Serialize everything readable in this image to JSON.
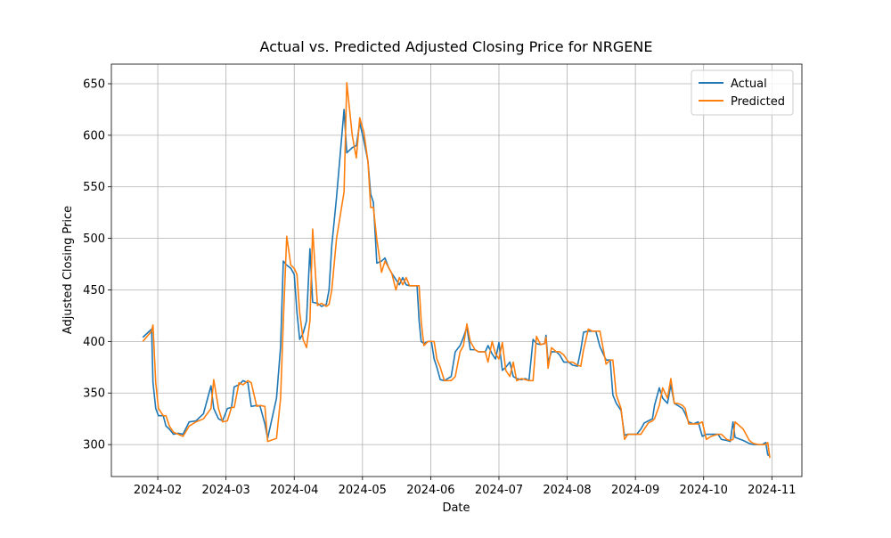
{
  "chart_data": {
    "type": "line",
    "title": "Actual vs. Predicted Adjusted Closing Price for NRGENE",
    "xlabel": "Date",
    "ylabel": "Adjusted Closing Price",
    "x": [
      1.78,
      1.91,
      1.93,
      1.97,
      2.01,
      2.08,
      2.12,
      2.17,
      2.23,
      2.3,
      2.37,
      2.46,
      2.56,
      2.67,
      2.78,
      2.82,
      2.89,
      2.95,
      3.02,
      3.08,
      3.12,
      3.19,
      3.25,
      3.32,
      3.37,
      3.45,
      3.5,
      3.57,
      3.61,
      3.74,
      3.8,
      3.84,
      3.89,
      3.95,
      4.0,
      4.04,
      4.08,
      4.13,
      4.18,
      4.23,
      4.27,
      4.34,
      4.4,
      4.47,
      4.51,
      4.55,
      4.62,
      4.73,
      4.77,
      4.85,
      4.91,
      4.96,
      5.02,
      5.08,
      5.12,
      5.16,
      5.21,
      5.28,
      5.33,
      5.38,
      5.43,
      5.49,
      5.54,
      5.59,
      5.64,
      5.69,
      5.8,
      5.83,
      5.86,
      5.9,
      5.96,
      6.01,
      6.05,
      6.09,
      6.14,
      6.2,
      6.3,
      6.36,
      6.43,
      6.48,
      6.53,
      6.58,
      6.65,
      6.7,
      6.8,
      6.84,
      6.9,
      6.95,
      7.0,
      7.05,
      7.1,
      7.16,
      7.21,
      7.26,
      7.33,
      7.39,
      7.44,
      7.5,
      7.55,
      7.61,
      7.67,
      7.69,
      7.72,
      7.77,
      7.84,
      7.89,
      7.95,
      8.02,
      8.08,
      8.15,
      8.2,
      8.24,
      8.31,
      8.37,
      8.42,
      8.48,
      8.57,
      8.63,
      8.67,
      8.72,
      8.79,
      8.84,
      8.89,
      8.96,
      9.02,
      9.08,
      9.13,
      9.19,
      9.25,
      9.28,
      9.35,
      9.4,
      9.47,
      9.52,
      9.57,
      9.62,
      9.69,
      9.73,
      9.78,
      9.85,
      9.92,
      9.98,
      10.04,
      10.11,
      10.21,
      10.26,
      10.34,
      10.39,
      10.43,
      10.46,
      10.58,
      10.67,
      10.73,
      10.81,
      10.86,
      10.91,
      10.94,
      10.97
    ],
    "series": [
      {
        "name": "Actual",
        "color": "#1f77b4",
        "values": [
          404,
          412,
          360,
          335,
          328,
          328,
          318,
          315,
          310,
          311,
          310,
          322,
          323,
          330,
          357,
          335,
          325,
          323,
          335,
          336,
          356,
          358,
          362,
          360,
          337,
          338,
          337,
          320,
          306,
          345,
          395,
          478,
          474,
          471,
          465,
          428,
          402,
          408,
          420,
          490,
          438,
          437,
          434,
          436,
          450,
          493,
          540,
          625,
          583,
          588,
          590,
          612,
          595,
          575,
          543,
          535,
          476,
          478,
          481,
          472,
          466,
          460,
          455,
          462,
          455,
          454,
          454,
          420,
          400,
          398,
          400,
          400,
          383,
          375,
          363,
          362,
          366,
          390,
          396,
          404,
          414,
          392,
          392,
          390,
          390,
          396,
          388,
          383,
          399,
          372,
          375,
          380,
          366,
          364,
          363,
          364,
          362,
          402,
          398,
          397,
          398,
          406,
          380,
          390,
          390,
          387,
          380,
          380,
          377,
          376,
          392,
          409,
          410,
          410,
          410,
          395,
          382,
          382,
          348,
          340,
          333,
          309,
          310,
          310,
          310,
          315,
          321,
          323,
          325,
          338,
          355,
          345,
          340,
          358,
          340,
          338,
          335,
          330,
          322,
          320,
          322,
          308,
          310,
          310,
          310,
          305,
          304,
          303,
          322,
          307,
          304,
          301,
          300,
          300,
          300,
          302,
          290,
          289
        ]
      },
      {
        "name": "Predicted",
        "color": "#ff7f0e",
        "values": [
          400,
          410,
          416,
          360,
          335,
          328,
          328,
          318,
          312,
          310,
          308,
          318,
          322,
          325,
          335,
          363,
          335,
          322,
          323,
          336,
          336,
          360,
          358,
          362,
          360,
          337,
          338,
          337,
          303,
          306,
          345,
          420,
          502,
          474,
          471,
          465,
          428,
          402,
          394,
          420,
          509,
          435,
          437,
          434,
          436,
          450,
          500,
          545,
          651,
          600,
          578,
          617,
          603,
          575,
          530,
          530,
          499,
          467,
          478,
          472,
          466,
          450,
          462,
          455,
          462,
          454,
          454,
          454,
          420,
          396,
          400,
          400,
          400,
          383,
          375,
          362,
          362,
          366,
          390,
          396,
          417,
          400,
          392,
          390,
          390,
          380,
          400,
          388,
          383,
          399,
          372,
          366,
          380,
          362,
          364,
          363,
          362,
          362,
          405,
          397,
          398,
          404,
          374,
          394,
          390,
          390,
          387,
          380,
          380,
          377,
          376,
          392,
          412,
          410,
          410,
          410,
          378,
          382,
          382,
          348,
          335,
          305,
          310,
          310,
          310,
          310,
          315,
          321,
          323,
          325,
          338,
          355,
          345,
          364,
          340,
          340,
          338,
          335,
          320,
          320,
          320,
          322,
          305,
          308,
          310,
          310,
          305,
          304,
          305,
          322,
          315,
          304,
          301,
          300,
          300,
          300,
          302,
          287
        ]
      }
    ],
    "xlim": [
      1.32,
      11.44
    ],
    "ylim": [
      269,
      669
    ],
    "xticks": [
      {
        "value": 2,
        "label": "2024-02"
      },
      {
        "value": 3,
        "label": "2024-03"
      },
      {
        "value": 4,
        "label": "2024-04"
      },
      {
        "value": 5,
        "label": "2024-05"
      },
      {
        "value": 6,
        "label": "2024-06"
      },
      {
        "value": 7,
        "label": "2024-07"
      },
      {
        "value": 8,
        "label": "2024-08"
      },
      {
        "value": 9,
        "label": "2024-09"
      },
      {
        "value": 10,
        "label": "2024-10"
      },
      {
        "value": 11,
        "label": "2024-11"
      }
    ],
    "yticks": [
      300,
      350,
      400,
      450,
      500,
      550,
      600,
      650
    ],
    "grid": true,
    "legend": "upper right"
  }
}
